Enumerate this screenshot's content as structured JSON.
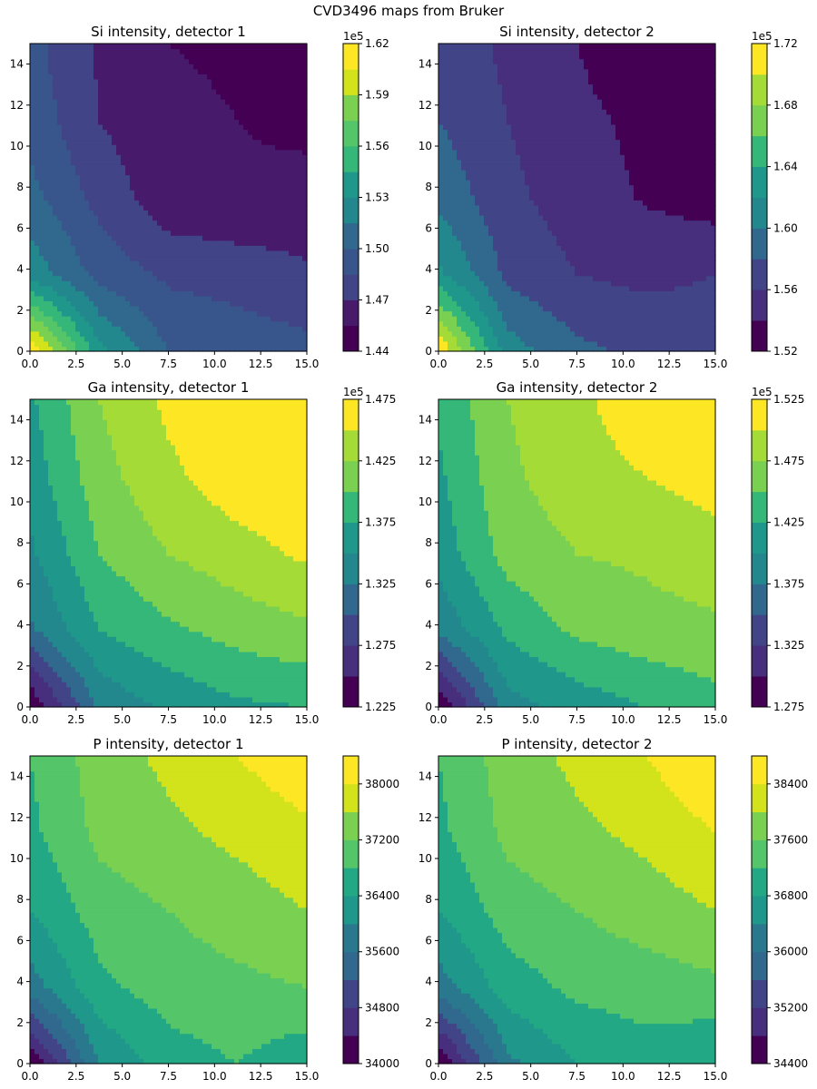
{
  "figure": {
    "suptitle": "CVD3496 maps from Bruker"
  },
  "palette": [
    "#440154",
    "#481a6c",
    "#472f7d",
    "#414487",
    "#39568c",
    "#31688e",
    "#2a788e",
    "#23888e",
    "#1f988b",
    "#22a884",
    "#35b779",
    "#54c568",
    "#7ad151",
    "#a5db36",
    "#d2e21b",
    "#fde725"
  ],
  "chart_data": [
    {
      "type": "contour",
      "title": "Si intensity, detector 1",
      "x_ticks": [
        "0.0",
        "2.5",
        "5.0",
        "7.5",
        "10.0",
        "12.5",
        "15.0"
      ],
      "y_ticks": [
        "0",
        "2",
        "4",
        "6",
        "8",
        "10",
        "12",
        "14"
      ],
      "xlim": [
        0,
        15
      ],
      "ylim": [
        0,
        15
      ],
      "grid": [
        5,
        5
      ],
      "values": [
        [
          1.62,
          1.535,
          1.5,
          1.495,
          1.49
        ],
        [
          1.525,
          1.495,
          1.482,
          1.478,
          1.472
        ],
        [
          1.505,
          1.48,
          1.46,
          1.458,
          1.462
        ],
        [
          1.495,
          1.47,
          1.458,
          1.455,
          1.45
        ],
        [
          1.49,
          1.468,
          1.455,
          1.453,
          1.445
        ]
      ],
      "levels": [
        1.44,
        1.455,
        1.47,
        1.485,
        1.5,
        1.515,
        1.53,
        1.545,
        1.56,
        1.575,
        1.59,
        1.605,
        1.62
      ],
      "colorbar": {
        "ticks": [
          "1.44",
          "1.47",
          "1.50",
          "1.53",
          "1.56",
          "1.59",
          "1.62"
        ],
        "tick_values": [
          1.44,
          1.47,
          1.5,
          1.53,
          1.56,
          1.59,
          1.62
        ],
        "min": 1.44,
        "max": 1.62,
        "offset": "1e5"
      }
    },
    {
      "type": "contour",
      "title": "Si intensity, detector 2",
      "x_ticks": [
        "0.0",
        "2.5",
        "5.0",
        "7.5",
        "10.0",
        "12.5",
        "15.0"
      ],
      "y_ticks": [
        "0",
        "2",
        "4",
        "6",
        "8",
        "10",
        "12",
        "14"
      ],
      "xlim": [
        0,
        15
      ],
      "ylim": [
        0,
        15
      ],
      "grid": [
        5,
        5
      ],
      "values": [
        [
          1.72,
          1.61,
          1.585,
          1.575,
          1.57
        ],
        [
          1.625,
          1.575,
          1.56,
          1.555,
          1.56
        ],
        [
          1.595,
          1.565,
          1.55,
          1.538,
          1.53
        ],
        [
          1.58,
          1.56,
          1.545,
          1.535,
          1.525
        ],
        [
          1.575,
          1.555,
          1.54,
          1.525,
          1.52
        ]
      ],
      "levels": [
        1.52,
        1.54,
        1.56,
        1.58,
        1.6,
        1.62,
        1.64,
        1.66,
        1.68,
        1.7,
        1.72
      ],
      "colorbar": {
        "ticks": [
          "1.52",
          "1.56",
          "1.60",
          "1.64",
          "1.68",
          "1.72"
        ],
        "tick_values": [
          1.52,
          1.56,
          1.6,
          1.64,
          1.68,
          1.72
        ],
        "min": 1.52,
        "max": 1.72,
        "offset": "1e5"
      }
    },
    {
      "type": "contour",
      "title": "Ga intensity, detector 1",
      "x_ticks": [
        "0.0",
        "2.5",
        "5.0",
        "7.5",
        "10.0",
        "12.5",
        "15.0"
      ],
      "y_ticks": [
        "0",
        "2",
        "4",
        "6",
        "8",
        "10",
        "12",
        "14"
      ],
      "xlim": [
        0,
        15
      ],
      "ylim": [
        0,
        15
      ],
      "grid": [
        5,
        5
      ],
      "values": [
        [
          1.225,
          1.33,
          1.355,
          1.37,
          1.375
        ],
        [
          1.32,
          1.375,
          1.395,
          1.41,
          1.42
        ],
        [
          1.345,
          1.4,
          1.425,
          1.44,
          1.455
        ],
        [
          1.36,
          1.415,
          1.445,
          1.465,
          1.47
        ],
        [
          1.37,
          1.425,
          1.455,
          1.47,
          1.475
        ]
      ],
      "levels": [
        1.225,
        1.25,
        1.275,
        1.3,
        1.325,
        1.35,
        1.375,
        1.4,
        1.425,
        1.45,
        1.475
      ],
      "colorbar": {
        "ticks": [
          "1.225",
          "1.275",
          "1.325",
          "1.375",
          "1.425",
          "1.475"
        ],
        "tick_values": [
          1.225,
          1.275,
          1.325,
          1.375,
          1.425,
          1.475
        ],
        "min": 1.225,
        "max": 1.475,
        "offset": "1e5"
      }
    },
    {
      "type": "contour",
      "title": "Ga intensity, detector 2",
      "x_ticks": [
        "0.0",
        "2.5",
        "5.0",
        "7.5",
        "10.0",
        "12.5",
        "15.0"
      ],
      "y_ticks": [
        "0",
        "2",
        "4",
        "6",
        "8",
        "10",
        "12",
        "14"
      ],
      "xlim": [
        0,
        15
      ],
      "ylim": [
        0,
        15
      ],
      "grid": [
        5,
        5
      ],
      "values": [
        [
          1.275,
          1.39,
          1.41,
          1.425,
          1.44
        ],
        [
          1.38,
          1.43,
          1.455,
          1.465,
          1.47
        ],
        [
          1.41,
          1.46,
          1.475,
          1.48,
          1.49
        ],
        [
          1.42,
          1.47,
          1.49,
          1.5,
          1.51
        ],
        [
          1.43,
          1.475,
          1.495,
          1.515,
          1.525
        ]
      ],
      "levels": [
        1.275,
        1.3,
        1.325,
        1.35,
        1.375,
        1.4,
        1.425,
        1.45,
        1.475,
        1.5,
        1.525
      ],
      "colorbar": {
        "ticks": [
          "1.275",
          "1.325",
          "1.375",
          "1.425",
          "1.475",
          "1.525"
        ],
        "tick_values": [
          1.275,
          1.325,
          1.375,
          1.425,
          1.475,
          1.525
        ],
        "min": 1.275,
        "max": 1.525,
        "offset": "1e5"
      }
    },
    {
      "type": "contour",
      "title": "P intensity, detector 1",
      "x_ticks": [
        "0.0",
        "2.5",
        "5.0",
        "7.5",
        "10.0",
        "12.5",
        "15.0"
      ],
      "y_ticks": [
        "0",
        "2",
        "4",
        "6",
        "8",
        "10",
        "12",
        "14"
      ],
      "xlim": [
        0,
        15
      ],
      "ylim": [
        0,
        15
      ],
      "grid": [
        5,
        5
      ],
      "values": [
        [
          34000,
          36000,
          36600,
          36800,
          36500
        ],
        [
          35800,
          36700,
          37000,
          37100,
          37200
        ],
        [
          36400,
          37000,
          37200,
          37400,
          37600
        ],
        [
          36700,
          37300,
          37500,
          37700,
          37900
        ],
        [
          36800,
          37400,
          37700,
          38000,
          38300
        ]
      ],
      "levels": [
        34000,
        34400,
        34800,
        35200,
        35600,
        36000,
        36400,
        36800,
        37200,
        37600,
        38000,
        38400
      ],
      "colorbar": {
        "ticks": [
          "34000",
          "34800",
          "35600",
          "36400",
          "37200",
          "38000"
        ],
        "tick_values": [
          34000,
          34800,
          35600,
          36400,
          37200,
          38000
        ],
        "min": 34000,
        "max": 38400,
        "offset": ""
      }
    },
    {
      "type": "contour",
      "title": "P intensity, detector 2",
      "x_ticks": [
        "0.0",
        "2.5",
        "5.0",
        "7.5",
        "10.0",
        "12.5",
        "15.0"
      ],
      "y_ticks": [
        "0",
        "2",
        "4",
        "6",
        "8",
        "10",
        "12",
        "14"
      ],
      "xlim": [
        0,
        15
      ],
      "ylim": [
        0,
        15
      ],
      "grid": [
        5,
        5
      ],
      "values": [
        [
          34400,
          36300,
          36800,
          37000,
          36800
        ],
        [
          36200,
          37000,
          37300,
          37400,
          37500
        ],
        [
          36800,
          37400,
          37600,
          37800,
          38000
        ],
        [
          37100,
          37700,
          37900,
          38100,
          38400
        ],
        [
          37200,
          37800,
          38100,
          38400,
          38800
        ]
      ],
      "levels": [
        34400,
        34800,
        35200,
        35600,
        36000,
        36400,
        36800,
        37200,
        37600,
        38000,
        38400,
        38800
      ],
      "colorbar": {
        "ticks": [
          "34400",
          "35200",
          "36000",
          "36800",
          "37600",
          "38400"
        ],
        "tick_values": [
          34400,
          35200,
          36000,
          36800,
          37600,
          38400
        ],
        "min": 34400,
        "max": 38800,
        "offset": ""
      }
    }
  ]
}
